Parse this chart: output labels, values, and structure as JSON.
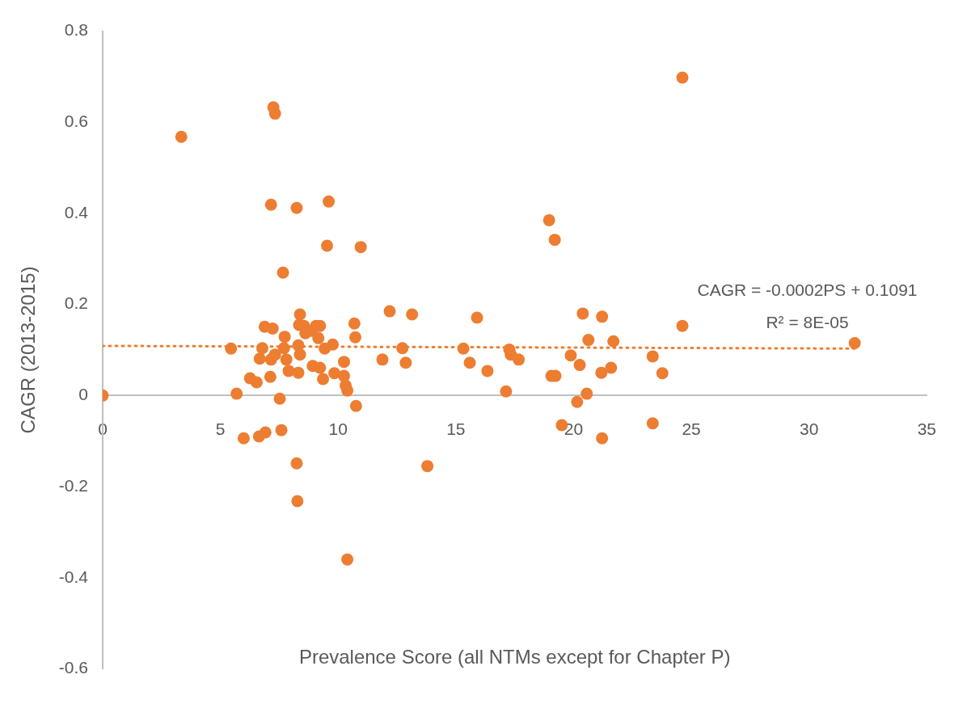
{
  "chart_data": {
    "type": "scatter",
    "xlabel": "Prevalence Score (all NTMs except for Chapter P)",
    "ylabel": "CAGR (2013-2015)",
    "annotations": [
      "CAGR = -0.0002PS + 0.1091",
      "R² = 8E-05"
    ],
    "xlim": [
      0,
      35
    ],
    "xticks": [
      0,
      5,
      10,
      15,
      20,
      25,
      30,
      35
    ],
    "ylim": [
      -0.6,
      0.8
    ],
    "yticks": [
      -0.6,
      -0.4,
      -0.2,
      0,
      0.2,
      0.4,
      0.6,
      0.8
    ],
    "grid": false,
    "legend": false,
    "marker": "circle",
    "series": [
      {
        "color": "#ed7d31",
        "x": [
          0,
          3.34,
          5.45,
          5.69,
          5.99,
          6.26,
          6.54,
          6.64,
          6.67,
          6.78,
          6.88,
          6.91,
          7.12,
          7.15,
          7.15,
          7.22,
          7.25,
          7.32,
          7.32,
          7.52,
          7.59,
          7.66,
          7.7,
          7.73,
          7.8,
          7.9,
          8.24,
          8.24,
          8.27,
          8.31,
          8.31,
          8.34,
          8.38,
          8.38,
          8.55,
          8.61,
          8.88,
          8.92,
          9.06,
          9.16,
          9.23,
          9.23,
          9.36,
          9.43,
          9.53,
          9.6,
          9.77,
          9.84,
          10.25,
          10.25,
          10.32,
          10.39,
          10.39,
          10.69,
          10.73,
          10.76,
          10.96,
          11.88,
          12.19,
          12.73,
          12.87,
          13.14,
          13.79,
          15.32,
          15.59,
          15.9,
          16.34,
          17.13,
          17.27,
          17.33,
          17.67,
          18.96,
          19.06,
          19.2,
          19.23,
          19.5,
          19.88,
          20.15,
          20.26,
          20.39,
          20.56,
          20.63,
          21.18,
          21.21,
          21.21,
          21.59,
          21.69,
          23.36,
          23.36,
          23.77,
          24.62,
          24.62,
          31.94
        ],
        "values": [
          0,
          0.568,
          0.103,
          0.004,
          -0.094,
          0.038,
          0.029,
          -0.09,
          0.081,
          0.104,
          0.151,
          -0.081,
          0.041,
          0.419,
          0.079,
          0.147,
          0.633,
          0.619,
          0.09,
          -0.007,
          -0.076,
          0.27,
          0.104,
          0.129,
          0.079,
          0.054,
          0.412,
          -0.149,
          -0.232,
          0.05,
          0.11,
          0.155,
          0.178,
          0.09,
          0.153,
          0.137,
          0.142,
          0.065,
          0.153,
          0.126,
          0.153,
          0.061,
          0.036,
          0.103,
          0.329,
          0.426,
          0.112,
          0.049,
          0.074,
          0.043,
          0.022,
          0.011,
          -0.36,
          0.158,
          0.128,
          -0.023,
          0.326,
          0.079,
          0.185,
          0.104,
          0.072,
          0.178,
          -0.155,
          0.103,
          0.072,
          0.171,
          0.054,
          0.009,
          0.101,
          0.09,
          0.079,
          0.385,
          0.043,
          0.342,
          0.043,
          -0.065,
          0.088,
          -0.014,
          0.067,
          0.18,
          0.004,
          0.122,
          0.05,
          0.173,
          -0.094,
          0.061,
          0.119,
          -0.061,
          0.086,
          0.049,
          0.153,
          0.698,
          0.115
        ]
      },
      {
        "type": "line",
        "color": "#ed7d31",
        "line_style": "dotted",
        "marker": "none",
        "x": [
          0,
          32
        ],
        "values": [
          0.109,
          0.103
        ]
      }
    ]
  }
}
